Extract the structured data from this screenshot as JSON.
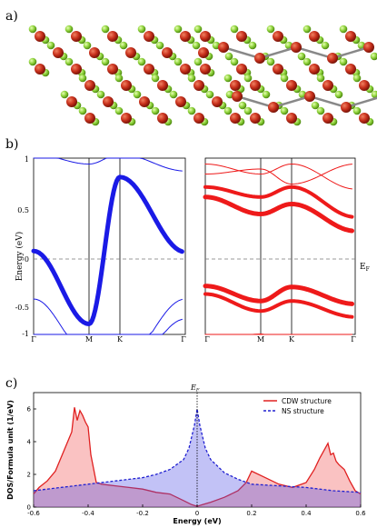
{
  "panels": {
    "a": "a)",
    "b": "b)",
    "c": "c)"
  },
  "colors": {
    "red_atom": "#c8301c",
    "green_atom": "#8ed23c",
    "blue_band": "#1a1ae6",
    "red_band": "#ee1a1a",
    "dos_red": "#e02020",
    "dos_blue": "#2020d0"
  },
  "band_panel": {
    "ylabel": "Energy (eV)",
    "yticks": [
      "1",
      "0.5",
      "0",
      "-0.5",
      "-1"
    ],
    "kpoints": [
      "Γ",
      "M",
      "K",
      "Γ"
    ],
    "fermi_label_main": "E",
    "fermi_label_sub": "F"
  },
  "chart_data": [
    {
      "type": "line",
      "title": "",
      "xlabel": "",
      "ylabel": "Energy (eV)",
      "ylim": [
        -1,
        1
      ],
      "categories": [
        "Γ",
        "M",
        "K",
        "Γ"
      ],
      "series": [
        {
          "name": "",
          "values": [
            0.08,
            -0.65,
            0.82,
            0.07
          ]
        }
      ]
    },
    {
      "type": "line",
      "title": "",
      "xlabel": "",
      "ylabel": "",
      "ylim": [
        -1,
        1
      ],
      "categories": [
        "Γ",
        "M",
        "K",
        "Γ"
      ],
      "series": [
        {
          "name": "",
          "values": [
            0.62,
            0.45,
            0.55,
            0.28
          ]
        },
        {
          "name": "",
          "values": [
            -0.27,
            -0.42,
            -0.28,
            -0.45
          ]
        }
      ]
    },
    {
      "type": "area",
      "title": "",
      "xlabel": "Energy (eV)",
      "ylabel": "DOS/Formula unit (1/eV)",
      "xlim": [
        -0.6,
        0.6
      ],
      "ylim": [
        0,
        7
      ],
      "xticks": [
        "-0.6",
        "-0.4",
        "-0.2",
        "0",
        "0.2",
        "0.4",
        "0.6"
      ],
      "yticks": [
        "0",
        "2",
        "4",
        "6"
      ],
      "fermi_label": "E_F",
      "legend": "top-right",
      "series": [
        {
          "name": "CDW structure",
          "x": [
            -0.6,
            -0.58,
            -0.55,
            -0.52,
            -0.5,
            -0.48,
            -0.46,
            -0.45,
            -0.44,
            -0.43,
            -0.42,
            -0.41,
            -0.4,
            -0.39,
            -0.37,
            -0.35,
            -0.3,
            -0.25,
            -0.2,
            -0.15,
            -0.1,
            -0.05,
            -0.02,
            0.0,
            0.02,
            0.05,
            0.1,
            0.15,
            0.18,
            0.2,
            0.25,
            0.3,
            0.35,
            0.4,
            0.43,
            0.45,
            0.47,
            0.48,
            0.49,
            0.5,
            0.51,
            0.52,
            0.54,
            0.56,
            0.58,
            0.6
          ],
          "values": [
            0.8,
            1.2,
            1.6,
            2.2,
            3.0,
            3.8,
            4.6,
            6.1,
            5.3,
            5.9,
            5.6,
            5.2,
            4.9,
            3.2,
            1.5,
            1.4,
            1.3,
            1.2,
            1.1,
            0.9,
            0.8,
            0.4,
            0.15,
            0.05,
            0.15,
            0.3,
            0.6,
            1.0,
            1.5,
            2.2,
            1.8,
            1.4,
            1.2,
            1.5,
            2.3,
            3.0,
            3.6,
            3.9,
            3.2,
            3.3,
            2.8,
            2.6,
            2.3,
            1.6,
            1.0,
            0.8
          ]
        },
        {
          "name": "NS structure",
          "x": [
            -0.6,
            -0.5,
            -0.4,
            -0.3,
            -0.2,
            -0.15,
            -0.1,
            -0.05,
            -0.03,
            -0.01,
            0.0,
            0.01,
            0.03,
            0.05,
            0.1,
            0.15,
            0.2,
            0.3,
            0.4,
            0.5,
            0.6
          ],
          "values": [
            1.0,
            1.2,
            1.4,
            1.6,
            1.8,
            2.0,
            2.3,
            2.9,
            3.6,
            5.0,
            6.0,
            5.0,
            3.6,
            2.9,
            2.1,
            1.7,
            1.4,
            1.3,
            1.2,
            1.0,
            0.9
          ]
        }
      ]
    }
  ]
}
